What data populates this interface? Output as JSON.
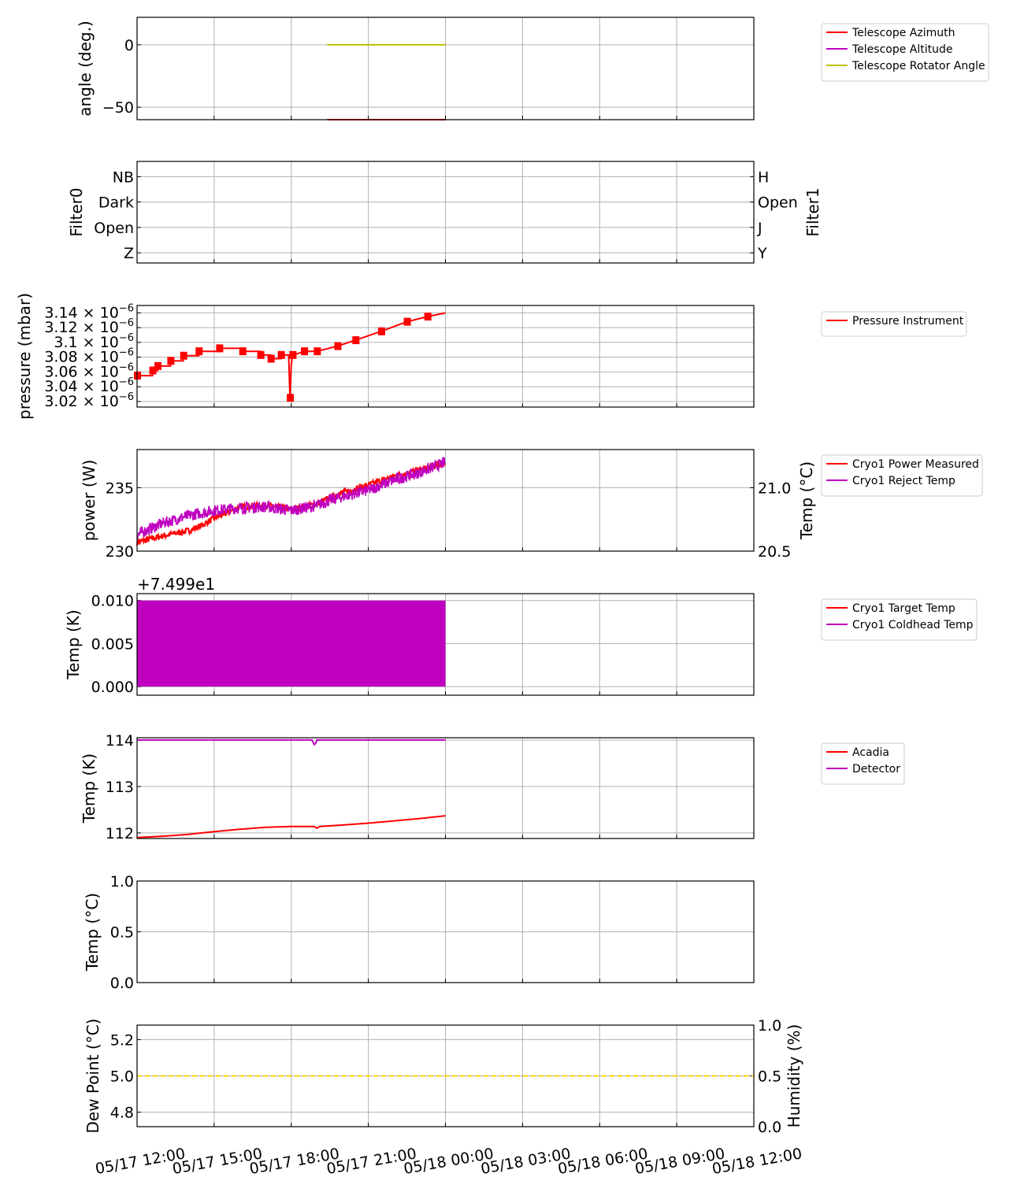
{
  "colors": {
    "red": "#ff0000",
    "magenta": "#bf00bf",
    "olive": "#bfbf00",
    "yellow": "#ffd700",
    "grid": "#b0b0b0"
  },
  "x_axis": {
    "tick_labels": [
      "05/17 12:00",
      "05/17 15:00",
      "05/17 18:00",
      "05/17 21:00",
      "05/18 00:00",
      "05/18 03:00",
      "05/18 06:00",
      "05/18 09:00",
      "05/18 12:00"
    ],
    "range_hours": [
      0,
      24
    ],
    "data_end_hours": 12
  },
  "chart_data": [
    {
      "id": "telescope",
      "type": "line",
      "ylabel": "angle (deg.)",
      "ylim": [
        -60,
        22
      ],
      "yticks": [
        {
          "v": 0,
          "label": "0"
        },
        {
          "v": -50,
          "label": "−50"
        }
      ],
      "series": [
        {
          "name": "Telescope Azimuth",
          "color": "#ff0000",
          "x": [
            7.4,
            12
          ],
          "y": [
            -60,
            -60
          ]
        },
        {
          "name": "Telescope Altitude",
          "color": "#bf00bf",
          "x": [],
          "y": []
        },
        {
          "name": "Telescope Rotator Angle",
          "color": "#bfbf00",
          "x": [
            7.4,
            12
          ],
          "y": [
            0,
            0
          ]
        }
      ],
      "legend": "outside-right"
    },
    {
      "id": "filters",
      "type": "line",
      "ylabel_left": "Filter0",
      "ylabel_right": "Filter1",
      "ylim": [
        -0.4,
        3.6
      ],
      "yticks_left": [
        {
          "v": 3,
          "label": "NB"
        },
        {
          "v": 2,
          "label": "Dark"
        },
        {
          "v": 1,
          "label": "Open"
        },
        {
          "v": 0,
          "label": "Z"
        }
      ],
      "yticks_right": [
        {
          "v": 3,
          "label": "H"
        },
        {
          "v": 2,
          "label": "Open"
        },
        {
          "v": 1,
          "label": "J"
        },
        {
          "v": 0,
          "label": "Y"
        }
      ],
      "series": []
    },
    {
      "id": "pressure",
      "type": "line",
      "ylabel": "pressure (mbar)",
      "ylim": [
        3.0125,
        3.15
      ],
      "yticks": [
        {
          "v": 3.14,
          "label": "3.14",
          "exp": "−6"
        },
        {
          "v": 3.12,
          "label": "3.12",
          "exp": "−6"
        },
        {
          "v": 3.1,
          "label": "3.1",
          "exp": "−6"
        },
        {
          "v": 3.08,
          "label": "3.08",
          "exp": "−6"
        },
        {
          "v": 3.06,
          "label": "3.06",
          "exp": "−6"
        },
        {
          "v": 3.04,
          "label": "3.04",
          "exp": "−6"
        },
        {
          "v": 3.02,
          "label": "3.02",
          "exp": "−6"
        }
      ],
      "series": [
        {
          "name": "Pressure Instrument",
          "color": "#ff0000",
          "x": [
            0,
            0.6,
            0.6,
            0.8,
            0.8,
            1.3,
            1.3,
            1.8,
            1.8,
            2.4,
            2.4,
            3.2,
            3.2,
            4.1,
            4.1,
            4.8,
            4.8,
            5.2,
            5.2,
            5.6,
            5.6,
            5.9,
            5.95,
            6.0,
            6.05,
            6.1,
            6.5,
            6.5,
            7.0,
            7.0,
            7.8,
            7.8,
            8.5,
            8.5,
            9.5,
            9.5,
            10.5,
            10.5,
            11.3,
            11.3,
            12
          ],
          "y": [
            3.055,
            3.055,
            3.062,
            3.062,
            3.068,
            3.068,
            3.075,
            3.075,
            3.082,
            3.082,
            3.088,
            3.088,
            3.092,
            3.092,
            3.088,
            3.088,
            3.083,
            3.083,
            3.078,
            3.078,
            3.083,
            3.083,
            3.025,
            3.07,
            3.083,
            3.083,
            3.088,
            3.088,
            3.088,
            3.088,
            3.095,
            3.095,
            3.103,
            3.103,
            3.115,
            3.115,
            3.128,
            3.128,
            3.135,
            3.135,
            3.14
          ]
        }
      ],
      "legend": "outside-right"
    },
    {
      "id": "cryo-power",
      "type": "line",
      "ylabel_left": "power (W)",
      "ylabel_right": "Temp (°C)",
      "ylim_left": [
        230,
        238
      ],
      "ylim_right": [
        20.5,
        21.3
      ],
      "yticks_left": [
        {
          "v": 235,
          "label": "235"
        },
        {
          "v": 230,
          "label": "230"
        }
      ],
      "yticks_right": [
        {
          "v": 21.0,
          "label": "21.0"
        },
        {
          "v": 20.5,
          "label": "20.5"
        }
      ],
      "series": [
        {
          "name": "Cryo1 Power Measured",
          "color": "#ff0000",
          "axis": "left",
          "x": [
            0,
            1,
            2,
            2.5,
            3,
            3.5,
            4,
            5,
            6,
            7,
            7.5,
            8,
            9,
            10,
            11,
            12
          ],
          "y": [
            230.7,
            231.2,
            231.6,
            232.0,
            232.6,
            233.0,
            233.5,
            233.6,
            233.3,
            233.7,
            234.2,
            234.6,
            235.2,
            235.9,
            236.4,
            236.9
          ]
        },
        {
          "name": "Cryo1 Reject Temp",
          "color": "#bf00bf",
          "axis": "right",
          "x": [
            0,
            1,
            2,
            3,
            4,
            5,
            6,
            7,
            7.5,
            8,
            9,
            10,
            11,
            12
          ],
          "y": [
            20.63,
            20.72,
            20.78,
            20.82,
            20.84,
            20.85,
            20.82,
            20.86,
            20.9,
            20.93,
            20.98,
            21.06,
            21.12,
            21.2
          ]
        }
      ],
      "legend": "outside-right"
    },
    {
      "id": "cryo-temp",
      "type": "area",
      "offset_text": "+7.499e1",
      "ylabel": "Temp (K)",
      "ylim": [
        -0.001,
        0.0108
      ],
      "yticks": [
        {
          "v": 0.01,
          "label": "0.010"
        },
        {
          "v": 0.005,
          "label": "0.005"
        },
        {
          "v": 0.0,
          "label": "0.000"
        }
      ],
      "series": [
        {
          "name": "Cryo1 Target Temp",
          "color": "#ff0000",
          "x": [],
          "y": []
        },
        {
          "name": "Cryo1 Coldhead Temp",
          "color": "#bf00bf",
          "x": [
            0,
            12
          ],
          "y_low": 0.0,
          "y_high": 0.01
        }
      ],
      "legend": "outside-right"
    },
    {
      "id": "detector",
      "type": "line",
      "ylabel": "Temp (K)",
      "ylim": [
        111.88,
        114.05
      ],
      "yticks": [
        {
          "v": 114,
          "label": "114"
        },
        {
          "v": 113,
          "label": "113"
        },
        {
          "v": 112,
          "label": "112"
        }
      ],
      "series": [
        {
          "name": "Acadia",
          "color": "#ff0000",
          "x": [
            0,
            1,
            2,
            3,
            4,
            5,
            6,
            6.9,
            7.0,
            7.1,
            8,
            9,
            10,
            11,
            12
          ],
          "y": [
            111.9,
            111.93,
            111.97,
            112.03,
            112.08,
            112.12,
            112.14,
            112.14,
            112.1,
            112.14,
            112.17,
            112.21,
            112.26,
            112.31,
            112.37
          ]
        },
        {
          "name": "Detector",
          "color": "#bf00bf",
          "x": [
            0,
            6.8,
            6.9,
            6.95,
            7.0,
            7.1,
            12
          ],
          "y": [
            114.0,
            114.0,
            113.9,
            113.93,
            114.0,
            114.0,
            114.0
          ]
        }
      ],
      "legend": "outside-right"
    },
    {
      "id": "ambient",
      "type": "line",
      "ylabel": "Temp (°C)",
      "ylim": [
        0,
        1
      ],
      "yticks": [
        {
          "v": 1.0,
          "label": "1.0"
        },
        {
          "v": 0.5,
          "label": "0.5"
        },
        {
          "v": 0.0,
          "label": "0.0"
        }
      ],
      "series": []
    },
    {
      "id": "dewpoint",
      "type": "line",
      "ylabel_left": "Dew Point (°C)",
      "ylabel_right": "Humidity (%)",
      "ylim_left": [
        4.72,
        5.28
      ],
      "ylim_right": [
        0,
        1
      ],
      "yticks_left": [
        {
          "v": 5.2,
          "label": "5.2"
        },
        {
          "v": 5.0,
          "label": "5.0"
        },
        {
          "v": 4.8,
          "label": "4.8"
        }
      ],
      "yticks_right": [
        {
          "v": 1.0,
          "label": "1.0"
        },
        {
          "v": 0.5,
          "label": "0.5"
        },
        {
          "v": 0.0,
          "label": "0.0"
        }
      ],
      "series": [
        {
          "name": "",
          "color": "#ffd700",
          "style": "dashed",
          "x": [
            0,
            24
          ],
          "y": [
            5.0,
            5.0
          ]
        }
      ]
    }
  ]
}
